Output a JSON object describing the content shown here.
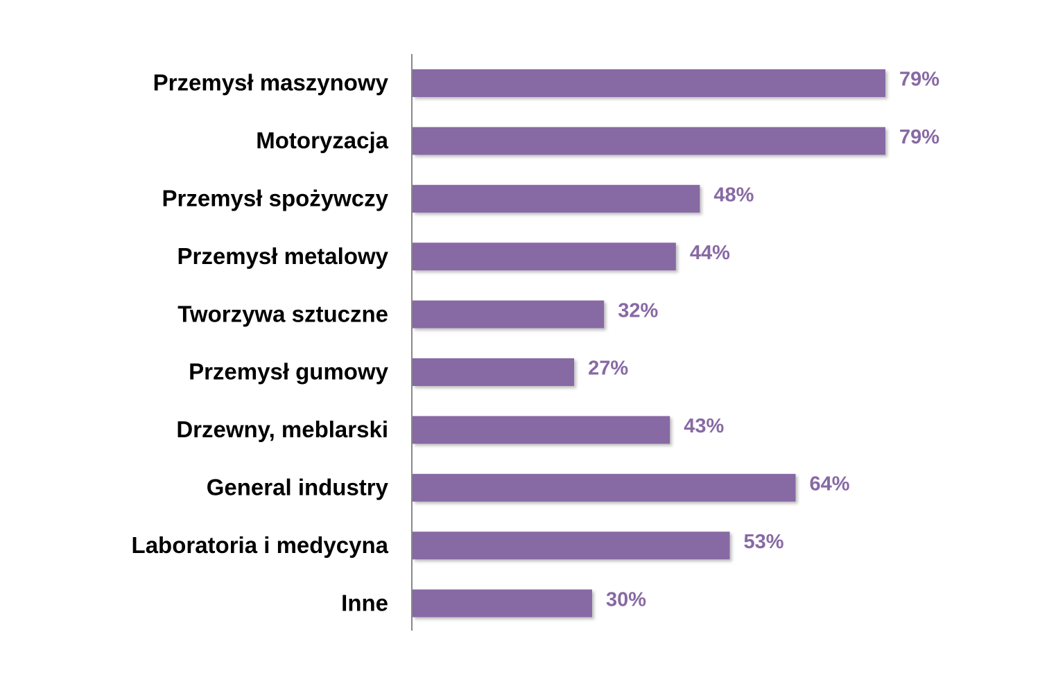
{
  "chart_data": {
    "type": "hbar",
    "categories": [
      "Przemysł maszynowy",
      "Motoryzacja",
      "Przemysł spożywczy",
      "Przemysł metalowy",
      "Tworzywa sztuczne",
      "Przemysł gumowy",
      "Drzewny, meblarski",
      "General industry",
      "Laboratoria i medycyna",
      "Inne"
    ],
    "values": [
      79,
      79,
      48,
      44,
      32,
      27,
      43,
      64,
      53,
      30
    ],
    "value_labels": [
      "79%",
      "79%",
      "48%",
      "44%",
      "32%",
      "27%",
      "43%",
      "64%",
      "53%",
      "30%"
    ],
    "color": "#8769a4"
  }
}
